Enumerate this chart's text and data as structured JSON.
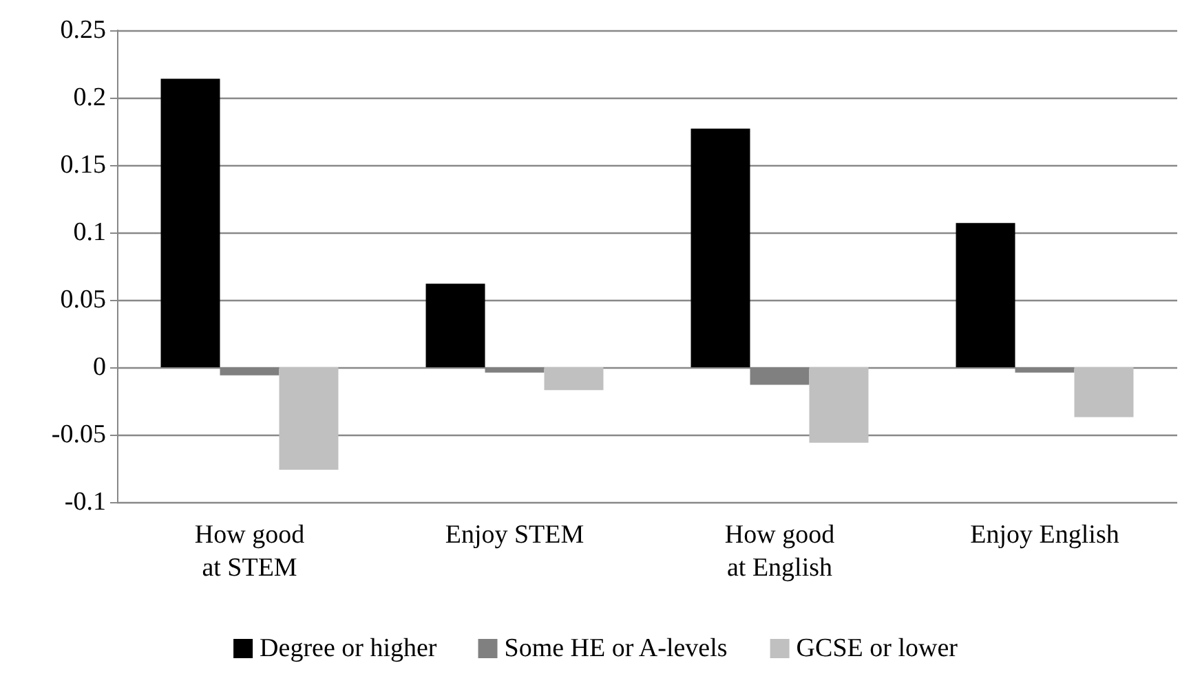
{
  "chart_data": {
    "type": "bar",
    "categories": [
      "How good at STEM",
      "Enjoy STEM",
      "How good at English",
      "Enjoy English"
    ],
    "series": [
      {
        "name": "Degree or higher",
        "color": "#000000",
        "values": [
          0.214,
          0.062,
          0.177,
          0.107
        ]
      },
      {
        "name": "Some HE or A-levels",
        "color": "#808080",
        "values": [
          -0.006,
          -0.004,
          -0.013,
          -0.004
        ]
      },
      {
        "name": "GCSE or lower",
        "color": "#c0c0c0",
        "values": [
          -0.076,
          -0.017,
          -0.056,
          -0.037
        ]
      }
    ],
    "ylim": [
      -0.1,
      0.25
    ],
    "yticks": [
      -0.1,
      -0.05,
      0,
      0.05,
      0.1,
      0.15,
      0.2,
      0.25
    ],
    "grid": "y",
    "legend": "bottom"
  }
}
